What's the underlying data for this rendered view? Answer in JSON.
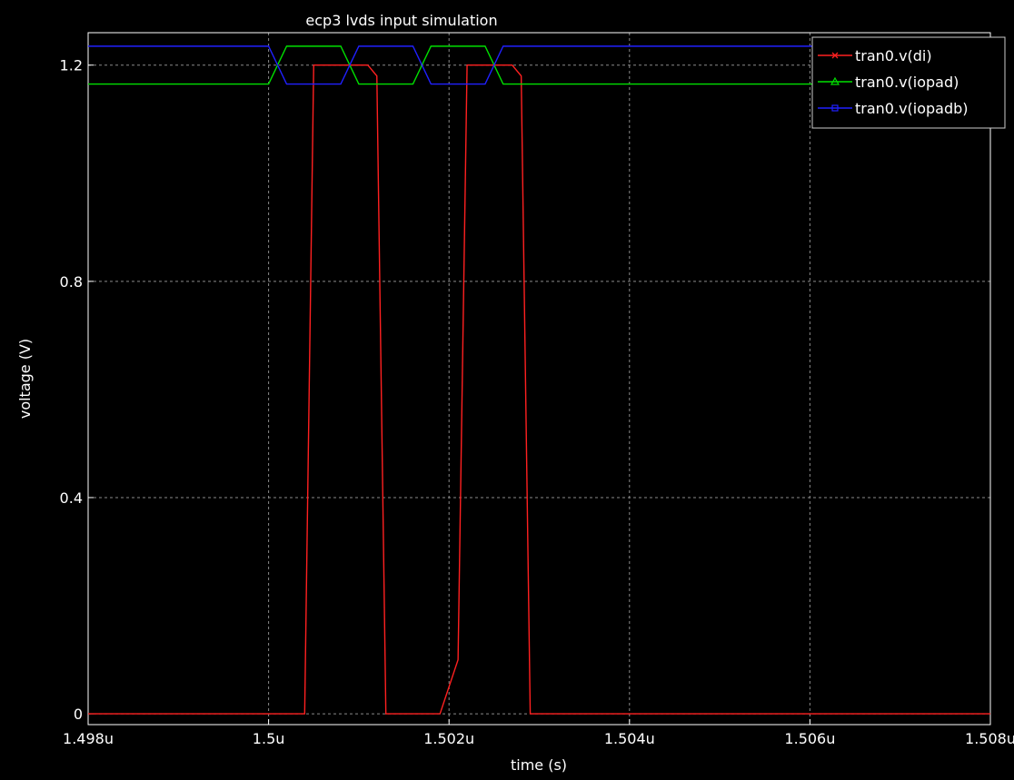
{
  "chart_data": {
    "type": "line",
    "title": "ecp3 lvds input simulation",
    "xlabel": "time (s)",
    "ylabel": "voltage (V)",
    "xlim": [
      1.498,
      1.508
    ],
    "ylim": [
      -0.02,
      1.26
    ],
    "x_ticks": [
      {
        "value": 1.498,
        "label": "1.498u"
      },
      {
        "value": 1.5,
        "label": "1.5u"
      },
      {
        "value": 1.502,
        "label": "1.502u"
      },
      {
        "value": 1.504,
        "label": "1.504u"
      },
      {
        "value": 1.506,
        "label": "1.506u"
      },
      {
        "value": 1.508,
        "label": "1.508u"
      }
    ],
    "y_ticks": [
      {
        "value": 0,
        "label": "0"
      },
      {
        "value": 0.4,
        "label": "0.4"
      },
      {
        "value": 0.8,
        "label": "0.8"
      },
      {
        "value": 1.2,
        "label": "1.2"
      }
    ],
    "grid": true,
    "legend_position": "top-right",
    "series": [
      {
        "name": "tran0.v(di)",
        "color": "#ff2020",
        "marker": "x",
        "x": [
          1.498,
          1.5004,
          1.5005,
          1.5011,
          1.5012,
          1.5013,
          1.5019,
          1.5021,
          1.5022,
          1.5027,
          1.5028,
          1.5029,
          1.508
        ],
        "y": [
          0,
          0,
          1.2,
          1.2,
          1.18,
          0,
          0,
          0.1,
          1.2,
          1.2,
          1.18,
          0,
          0
        ]
      },
      {
        "name": "tran0.v(iopad)",
        "color": "#00e000",
        "marker": "triangle",
        "x": [
          1.498,
          1.5,
          1.5002,
          1.5008,
          1.501,
          1.5016,
          1.5018,
          1.5024,
          1.5026,
          1.508
        ],
        "y": [
          1.165,
          1.165,
          1.235,
          1.235,
          1.165,
          1.165,
          1.235,
          1.235,
          1.165,
          1.165
        ]
      },
      {
        "name": "tran0.v(iopadb)",
        "color": "#2020ff",
        "marker": "square",
        "x": [
          1.498,
          1.5,
          1.5002,
          1.5008,
          1.501,
          1.5016,
          1.5018,
          1.5024,
          1.5026,
          1.508
        ],
        "y": [
          1.235,
          1.235,
          1.165,
          1.165,
          1.235,
          1.235,
          1.165,
          1.165,
          1.235,
          1.235
        ]
      }
    ]
  }
}
